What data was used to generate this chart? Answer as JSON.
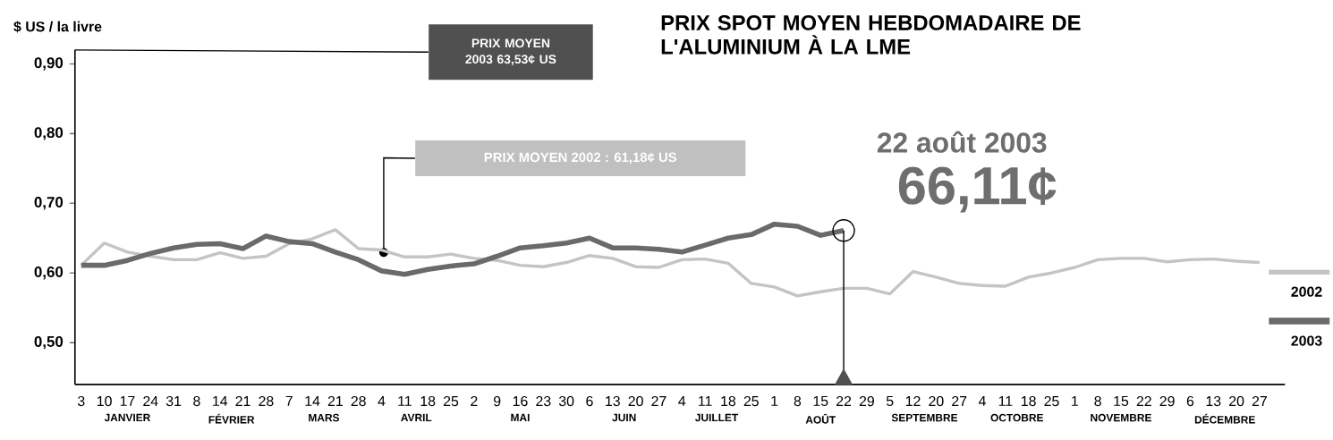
{
  "chart_data": {
    "type": "line",
    "title": "PRIX SPOT MOYEN HEBDOMADAIRE DE L'ALUMINIUM À LA LME",
    "ylabel": "$ US / la livre",
    "categories": [
      "3",
      "10",
      "17",
      "24",
      "31",
      "8",
      "14",
      "21",
      "28",
      "7",
      "14",
      "21",
      "28",
      "4",
      "11",
      "18",
      "25",
      "2",
      "9",
      "16",
      "23",
      "30",
      "6",
      "13",
      "20",
      "27",
      "4",
      "11",
      "18",
      "25",
      "1",
      "8",
      "15",
      "22",
      "29",
      "5",
      "12",
      "20",
      "27",
      "4",
      "11",
      "18",
      "25",
      "1",
      "8",
      "15",
      "22",
      "29",
      "6",
      "13",
      "20",
      "27"
    ],
    "series": [
      {
        "name": "2002",
        "color": "#c4c4c4",
        "values": [
          0.611,
          0.643,
          0.63,
          0.624,
          0.619,
          0.619,
          0.629,
          0.621,
          0.624,
          0.642,
          0.649,
          0.662,
          0.635,
          0.633,
          0.623,
          0.623,
          0.627,
          0.621,
          0.618,
          0.611,
          0.609,
          0.615,
          0.625,
          0.621,
          0.609,
          0.608,
          0.619,
          0.62,
          0.614,
          0.585,
          0.58,
          0.567,
          0.573,
          0.578,
          0.578,
          0.57,
          0.602,
          0.594,
          0.585,
          0.582,
          0.581,
          0.594,
          0.6,
          0.608,
          0.619,
          0.621,
          0.621,
          0.616,
          0.619,
          0.62,
          0.617,
          0.615
        ]
      },
      {
        "name": "2003",
        "color": "#6a6a6a",
        "values": [
          0.611,
          0.611,
          0.618,
          0.628,
          0.636,
          0.641,
          0.642,
          0.635,
          0.653,
          0.645,
          0.642,
          0.63,
          0.619,
          0.603,
          0.598,
          0.605,
          0.61,
          0.613,
          0.624,
          0.636,
          0.639,
          0.643,
          0.65,
          0.636,
          0.636,
          0.634,
          0.63,
          0.64,
          0.65,
          0.655,
          0.67,
          0.667,
          0.654,
          0.661,
          null,
          null,
          null,
          null,
          null,
          null,
          null,
          null,
          null,
          null,
          null,
          null,
          null,
          null,
          null,
          null,
          null,
          null
        ]
      }
    ],
    "ylim": [
      0.44,
      0.92
    ],
    "yticks": [
      {
        "value": 0.5,
        "label": "0,50"
      },
      {
        "value": 0.6,
        "label": "0,60"
      },
      {
        "value": 0.7,
        "label": "0,70"
      },
      {
        "value": 0.8,
        "label": "0,80"
      },
      {
        "value": 0.9,
        "label": "0,90"
      }
    ],
    "legend": "right",
    "marker": "none",
    "annotations": [
      "JANVIER",
      "FÉVRIER",
      "MARS",
      "AVRIL",
      "MAI",
      "JUIN",
      "JUILLET",
      "AOÛT",
      "SEPTEMBRE",
      "OCTOBRE",
      "NOVEMBRE",
      "DÉCEMBRE",
      "PRIX MOYEN 2003 63,53¢ US",
      "PRIX MOYEN 2002 : 61,18¢ US",
      {
        "text": "22 août 2003",
        "x": "22",
        "y": 0.661
      },
      "66,11¢"
    ]
  }
}
